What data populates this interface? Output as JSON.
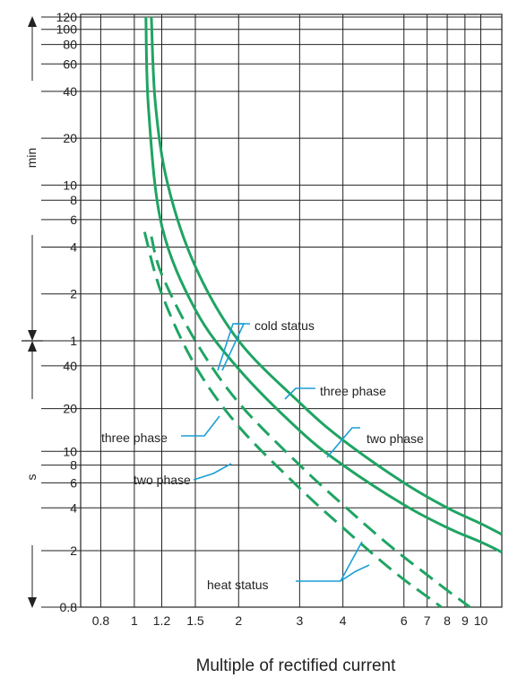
{
  "chart_data": {
    "type": "line",
    "title": "",
    "xlabel": "Multiple of rectified current",
    "ylabel_min": "min",
    "ylabel_s": "s",
    "x_scale": "log",
    "x_ticks": [
      0.8,
      1,
      1.2,
      1.5,
      2,
      3,
      4,
      6,
      7,
      8,
      9,
      10
    ],
    "x_tick_labels": [
      "0.8",
      "1",
      "1.2",
      "1.5",
      "2",
      "3",
      "4",
      "6",
      "7",
      "8",
      "9",
      "10"
    ],
    "y_scale": "log",
    "y_ticks_min": [
      {
        "label": "120",
        "seconds": 7200
      },
      {
        "label": "100",
        "seconds": 6000
      },
      {
        "label": "80",
        "seconds": 4800
      },
      {
        "label": "60",
        "seconds": 3600
      },
      {
        "label": "40",
        "seconds": 2400
      },
      {
        "label": "20",
        "seconds": 1200
      },
      {
        "label": "10",
        "seconds": 600
      },
      {
        "label": "8",
        "seconds": 480
      },
      {
        "label": "6",
        "seconds": 360
      },
      {
        "label": "4",
        "seconds": 240
      },
      {
        "label": "2",
        "seconds": 120
      },
      {
        "label": "1",
        "seconds": 60
      }
    ],
    "y_ticks_s": [
      {
        "label": "40",
        "seconds": 40
      },
      {
        "label": "20",
        "seconds": 20
      },
      {
        "label": "10",
        "seconds": 10
      },
      {
        "label": "8",
        "seconds": 8
      },
      {
        "label": "6",
        "seconds": 6
      },
      {
        "label": "4",
        "seconds": 4
      },
      {
        "label": "2",
        "seconds": 2
      },
      {
        "label": "0.8",
        "seconds": 0.8
      }
    ],
    "y_range_seconds": [
      0.8,
      7200
    ],
    "x_range": [
      0.7,
      11.5
    ],
    "grid": true,
    "line_color": "#1fa463",
    "annotation_color": "#1a9fd6",
    "series": [
      {
        "status": "cold",
        "phase": "three",
        "style": "solid",
        "points": [
          [
            1.08,
            7200
          ],
          [
            1.1,
            1800
          ],
          [
            1.2,
            330
          ],
          [
            1.5,
            95
          ],
          [
            2,
            38
          ],
          [
            3,
            14
          ],
          [
            4,
            8
          ],
          [
            6,
            4.2
          ],
          [
            8,
            2.9
          ],
          [
            10,
            2.3
          ],
          [
            11.5,
            1.95
          ]
        ]
      },
      {
        "status": "cold",
        "phase": "two",
        "style": "solid",
        "points": [
          [
            1.12,
            7200
          ],
          [
            1.15,
            2000
          ],
          [
            1.25,
            600
          ],
          [
            1.5,
            180
          ],
          [
            2,
            60
          ],
          [
            3,
            22
          ],
          [
            4,
            12
          ],
          [
            6,
            6
          ],
          [
            8,
            4
          ],
          [
            10,
            3.1
          ],
          [
            11.5,
            2.6
          ]
        ]
      },
      {
        "status": "heat",
        "phase": "three",
        "style": "dashed",
        "points": [
          [
            1.07,
            300
          ],
          [
            1.2,
            120
          ],
          [
            1.5,
            40
          ],
          [
            2,
            15
          ],
          [
            3,
            5.5
          ],
          [
            4,
            2.9
          ],
          [
            5,
            1.8
          ],
          [
            6,
            1.25
          ],
          [
            7,
            0.95
          ],
          [
            7.7,
            0.8
          ]
        ]
      },
      {
        "status": "heat",
        "phase": "two",
        "style": "dashed",
        "points": [
          [
            1.12,
            280
          ],
          [
            1.2,
            160
          ],
          [
            1.5,
            60
          ],
          [
            2,
            22
          ],
          [
            3,
            8
          ],
          [
            4,
            4.2
          ],
          [
            5,
            2.6
          ],
          [
            6,
            1.8
          ],
          [
            7,
            1.35
          ],
          [
            8,
            1.05
          ],
          [
            9,
            0.85
          ],
          [
            9.3,
            0.8
          ]
        ]
      }
    ],
    "annotations": {
      "cold_status": "cold status",
      "three_phase_upper": "three phase",
      "two_phase_upper": "two phase",
      "three_phase_lower": "three phase",
      "two_phase_lower": "two phase",
      "heat_status": "heat status"
    }
  }
}
